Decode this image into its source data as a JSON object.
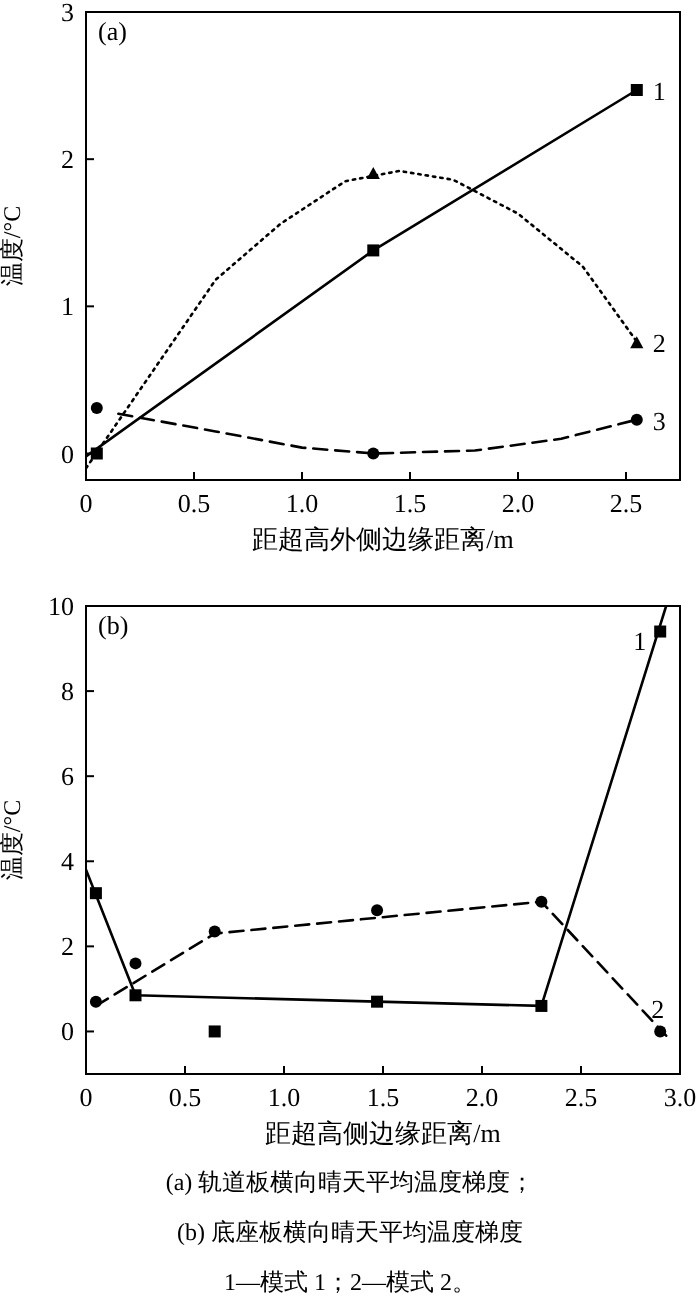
{
  "chart_data": [
    {
      "type": "line",
      "title": "(a)",
      "xlabel": "距超高外侧边缘距离/m",
      "ylabel": "温度/°C",
      "xlim": [
        0,
        2.75
      ],
      "ylim": [
        -0.18,
        3
      ],
      "xticks": [
        0,
        0.5,
        {
          "value": 1,
          "label": "1.0"
        },
        1.5,
        {
          "value": 2,
          "label": "2.0"
        },
        2.5
      ],
      "yticks": [
        0,
        1,
        2,
        3
      ],
      "series": [
        {
          "name": "1",
          "type": "line",
          "color": "#000000",
          "line_style": "solid",
          "marker": "none",
          "x": [
            0,
            1.33,
            2.55
          ],
          "values": [
            -0.02,
            1.38,
            2.47
          ]
        },
        {
          "type": "scatter",
          "color": "#000000",
          "marker": "square",
          "x": [
            0.05,
            1.33,
            2.55
          ],
          "values": [
            0,
            1.38,
            2.47
          ]
        },
        {
          "name": "2",
          "type": "line",
          "color": "#000000",
          "line_style": "dotted",
          "marker": "none",
          "x": [
            0,
            0.3,
            0.6,
            0.9,
            1.2,
            1.45,
            1.7,
            2.0,
            2.3,
            2.55
          ],
          "values": [
            -0.1,
            0.54,
            1.18,
            1.56,
            1.85,
            1.92,
            1.86,
            1.63,
            1.27,
            0.76
          ]
        },
        {
          "type": "scatter",
          "color": "#000000",
          "marker": "triangle",
          "x": [
            1.33,
            2.55
          ],
          "values": [
            1.9,
            0.75
          ]
        },
        {
          "name": "3",
          "type": "line",
          "color": "#000000",
          "line_style": "dashed",
          "marker": "none",
          "x": [
            0.15,
            0.6,
            1.0,
            1.33,
            1.8,
            2.2,
            2.55
          ],
          "values": [
            0.27,
            0.15,
            0.04,
            0,
            0.02,
            0.1,
            0.23
          ]
        },
        {
          "type": "scatter",
          "color": "#000000",
          "marker": "circle",
          "x": [
            0.05,
            1.33,
            2.55
          ],
          "values": [
            0.31,
            0,
            0.23
          ]
        }
      ]
    },
    {
      "type": "line",
      "title": "(b)",
      "xlabel": "距超高侧边缘距离/m",
      "ylabel": "温度/°C",
      "xlim": [
        0,
        3
      ],
      "ylim": [
        -1,
        10
      ],
      "xticks": [
        0,
        0.5,
        {
          "value": 1,
          "label": "1.0"
        },
        1.5,
        {
          "value": 2,
          "label": "2.0"
        },
        2.5,
        {
          "value": 3,
          "label": "3.0"
        }
      ],
      "yticks": [
        0,
        2,
        4,
        6,
        8,
        10
      ],
      "series": [
        {
          "name": "1",
          "type": "line",
          "color": "#000000",
          "line_style": "solid",
          "marker": "none",
          "x": [
            0,
            0.25,
            2.3,
            2.93
          ],
          "values": [
            3.8,
            0.85,
            0.6,
            10
          ]
        },
        {
          "type": "scatter",
          "color": "#000000",
          "marker": "square",
          "x": [
            0.05,
            0.25,
            0.65,
            1.47,
            2.3,
            2.9
          ],
          "values": [
            3.25,
            0.85,
            0,
            0.7,
            0.6,
            9.4
          ]
        },
        {
          "name": "2",
          "type": "line",
          "color": "#000000",
          "line_style": "dashed",
          "marker": "none",
          "x": [
            0.05,
            0.65,
            2.3,
            2.93
          ],
          "values": [
            0.6,
            2.3,
            3.05,
            -0.1
          ]
        },
        {
          "type": "scatter",
          "color": "#000000",
          "marker": "circle",
          "x": [
            0.05,
            0.25,
            0.65,
            1.47,
            2.3,
            2.9
          ],
          "values": [
            0.7,
            1.6,
            2.35,
            2.85,
            3.05,
            0
          ]
        }
      ],
      "annotations": [
        "(a) 轨道板横向晴天平均温度梯度；",
        "(b) 底座板横向晴天平均温度梯度",
        "1—模式 1；2—模式 2。"
      ]
    }
  ]
}
